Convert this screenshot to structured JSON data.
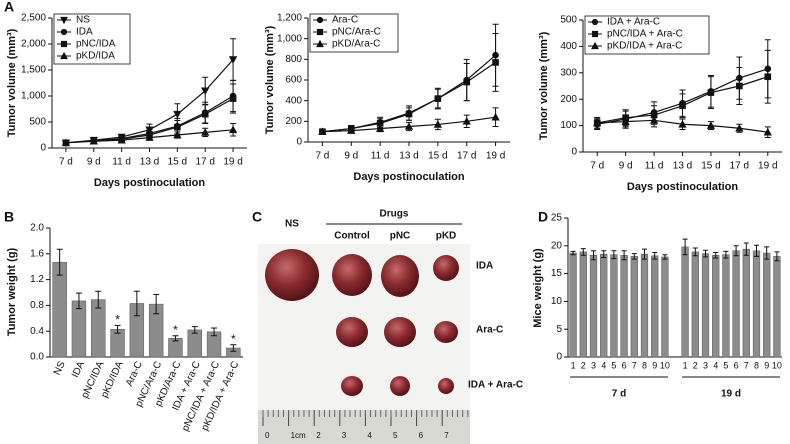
{
  "panel_labels": [
    "A",
    "B",
    "C",
    "D"
  ],
  "chart_data": [
    {
      "type": "line",
      "y_label": "Tumor volume (mm³)",
      "x_label": "Days postinoculation",
      "categories": [
        "7 d",
        "9 d",
        "11 d",
        "13 d",
        "15 d",
        "17 d",
        "19 d"
      ],
      "ylim": [
        0,
        2500
      ],
      "yticks": [
        0,
        500,
        {
          "value": 1000,
          "label": "1,000"
        },
        {
          "value": 1500,
          "label": "1,500"
        },
        {
          "value": 2000,
          "label": "2,000"
        },
        {
          "value": 2500,
          "label": "2,500"
        }
      ],
      "series": [
        {
          "name": "NS",
          "marker": "triangle-down",
          "color": "#111111",
          "values": [
            100,
            150,
            210,
            350,
            650,
            1100,
            1700
          ],
          "errors": [
            15,
            25,
            40,
            110,
            200,
            260,
            400
          ]
        },
        {
          "name": "IDA",
          "marker": "circle",
          "color": "#111111",
          "values": [
            100,
            140,
            180,
            280,
            420,
            680,
            1000
          ],
          "errors": [
            15,
            20,
            35,
            80,
            150,
            200,
            300
          ]
        },
        {
          "name": "pNC/IDA",
          "marker": "square",
          "color": "#111111",
          "values": [
            100,
            140,
            170,
            250,
            400,
            650,
            950
          ],
          "errors": [
            15,
            20,
            30,
            70,
            130,
            180,
            280
          ]
        },
        {
          "name": "pKD/IDA",
          "marker": "triangle",
          "color": "#111111",
          "values": [
            100,
            130,
            150,
            200,
            250,
            300,
            350
          ],
          "errors": [
            10,
            15,
            25,
            40,
            60,
            80,
            120
          ]
        }
      ]
    },
    {
      "type": "line",
      "y_label": "Tumor volume (mm³)",
      "x_label": "Days postinoculation",
      "categories": [
        "7 d",
        "9 d",
        "11 d",
        "13 d",
        "15 d",
        "17 d",
        "19 d"
      ],
      "ylim": [
        0,
        1200
      ],
      "yticks": [
        0,
        200,
        400,
        600,
        800,
        {
          "value": 1000,
          "label": "1,000"
        },
        {
          "value": 1200,
          "label": "1,200"
        }
      ],
      "series": [
        {
          "name": "Ara-C",
          "marker": "circle",
          "color": "#111111",
          "values": [
            100,
            130,
            190,
            280,
            420,
            600,
            840
          ],
          "errors": [
            15,
            30,
            50,
            70,
            100,
            200,
            300
          ]
        },
        {
          "name": "pNC/Ara-C",
          "marker": "square",
          "color": "#111111",
          "values": [
            100,
            130,
            180,
            270,
            420,
            580,
            770
          ],
          "errors": [
            15,
            30,
            45,
            60,
            90,
            180,
            280
          ]
        },
        {
          "name": "pKD/Ara-C",
          "marker": "triangle",
          "color": "#111111",
          "values": [
            100,
            110,
            130,
            150,
            170,
            200,
            240
          ],
          "errors": [
            10,
            20,
            30,
            40,
            50,
            60,
            90
          ]
        }
      ]
    },
    {
      "type": "line",
      "y_label": "Tumor volume (mm³)",
      "x_label": "Days postinoculation",
      "categories": [
        "7 d",
        "9 d",
        "11 d",
        "13 d",
        "15 d",
        "17 d",
        "19 d"
      ],
      "ylim": [
        0,
        500
      ],
      "yticks": [
        0,
        100,
        200,
        300,
        400,
        500
      ],
      "series": [
        {
          "name": "IDA + Ara-C",
          "marker": "circle",
          "color": "#111111",
          "values": [
            105,
            125,
            150,
            185,
            230,
            280,
            315
          ],
          "errors": [
            20,
            30,
            40,
            50,
            60,
            80,
            110
          ]
        },
        {
          "name": "pNC/IDA + Ara-C",
          "marker": "square",
          "color": "#111111",
          "values": [
            110,
            130,
            140,
            175,
            225,
            250,
            285
          ],
          "errors": [
            20,
            30,
            35,
            45,
            60,
            70,
            100
          ]
        },
        {
          "name": "pKD/IDA + Ara-C",
          "marker": "triangle",
          "color": "#111111",
          "values": [
            110,
            115,
            120,
            105,
            100,
            90,
            75
          ],
          "errors": [
            20,
            25,
            25,
            20,
            15,
            15,
            20
          ]
        }
      ]
    },
    {
      "type": "bar",
      "y_label": "Tumor weight (g)",
      "color": "#8c8c8c",
      "categories": [
        "NS",
        "IDA",
        "pNC/IDA",
        "pKD/IDA",
        "Ara-C",
        "pNC/Ara-C",
        "pKD/Ara-C",
        "IDA + Ara-C",
        "pNC/IDA + Ara-C",
        "pKD/IDA + Ara-C"
      ],
      "values": [
        1.47,
        0.87,
        0.89,
        0.43,
        0.83,
        0.82,
        0.29,
        0.42,
        0.39,
        0.14
      ],
      "errors": [
        0.2,
        0.12,
        0.13,
        0.06,
        0.19,
        0.15,
        0.04,
        0.05,
        0.06,
        0.05
      ],
      "significance": [
        null,
        null,
        null,
        "*",
        null,
        null,
        "*",
        null,
        null,
        "*"
      ],
      "ylim": [
        0,
        2
      ],
      "yticks": [
        {
          "value": 0,
          "label": "0.0"
        },
        0.4,
        0.8,
        1.2,
        1.6,
        {
          "value": 2,
          "label": "2.0"
        }
      ]
    },
    {
      "type": "bar",
      "y_label": "Mice weight (g)",
      "color": "#8c8c8c",
      "ylim": [
        0,
        25
      ],
      "yticks": [
        0,
        5,
        10,
        15,
        20,
        25
      ],
      "groups": [
        {
          "name": "7 d",
          "categories": [
            "1",
            "2",
            "3",
            "4",
            "5",
            "6",
            "7",
            "8",
            "9",
            "10"
          ],
          "values": [
            18.7,
            18.9,
            18.3,
            18.5,
            18.4,
            18.3,
            18.1,
            18.5,
            18.2,
            18.0
          ],
          "errors": [
            0.3,
            0.6,
            0.8,
            0.6,
            0.7,
            0.8,
            0.5,
            0.9,
            0.6,
            0.4
          ]
        },
        {
          "name": "19 d",
          "categories": [
            "1",
            "2",
            "3",
            "4",
            "5",
            "6",
            "7",
            "8",
            "9",
            "10"
          ],
          "values": [
            19.8,
            18.9,
            18.6,
            18.3,
            18.4,
            19.1,
            19.4,
            19.1,
            18.7,
            18.1
          ],
          "errors": [
            1.4,
            0.7,
            0.6,
            0.5,
            0.6,
            0.9,
            1.1,
            1.0,
            1.1,
            0.8
          ]
        }
      ]
    }
  ],
  "photo": {
    "columns": [
      "NS",
      "Control",
      "pNC",
      "pKD"
    ],
    "drugs_label": "Drugs",
    "rows": [
      "IDA",
      "Ara-C",
      "IDA + Ara-C"
    ],
    "ruler": [
      "0",
      "1cm",
      "2",
      "3",
      "4",
      "5",
      "6",
      "7"
    ]
  }
}
